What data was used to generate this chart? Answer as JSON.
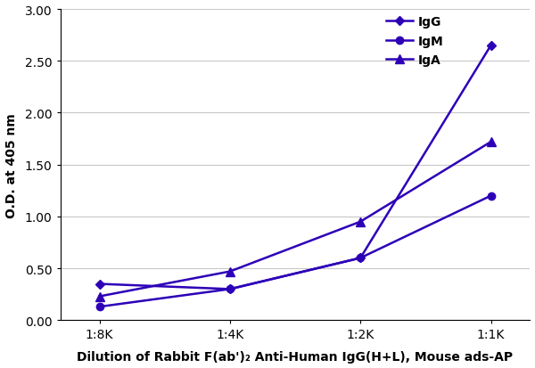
{
  "x_labels": [
    "1:8K",
    "1:4K",
    "1:2K",
    "1:1K"
  ],
  "x_values": [
    0,
    1,
    2,
    3
  ],
  "series": [
    {
      "label": "IgG",
      "values": [
        0.35,
        0.3,
        0.6,
        2.65
      ],
      "color": "#2d00b8",
      "marker": "D",
      "markersize": 5,
      "linewidth": 1.8
    },
    {
      "label": "IgM",
      "values": [
        0.13,
        0.3,
        0.6,
        1.2
      ],
      "color": "#2d00b8",
      "marker": "o",
      "markersize": 6,
      "linewidth": 1.8
    },
    {
      "label": "IgA",
      "values": [
        0.23,
        0.47,
        0.95,
        1.72
      ],
      "color": "#2d00b8",
      "marker": "^",
      "markersize": 7,
      "linewidth": 1.8
    }
  ],
  "ylabel": "O.D. at 405 nm",
  "xlabel": "Dilution of Rabbit F(ab')₂ Anti-Human IgG(H+L), Mouse ads-AP",
  "ylim": [
    0.0,
    3.0
  ],
  "yticks": [
    0.0,
    0.5,
    1.0,
    1.5,
    2.0,
    2.5,
    3.0
  ],
  "ylabel_fontsize": 10,
  "xlabel_fontsize": 10,
  "tick_fontsize": 10,
  "legend_fontsize": 10,
  "background_color": "#ffffff",
  "grid_color": "#c8c8c8"
}
